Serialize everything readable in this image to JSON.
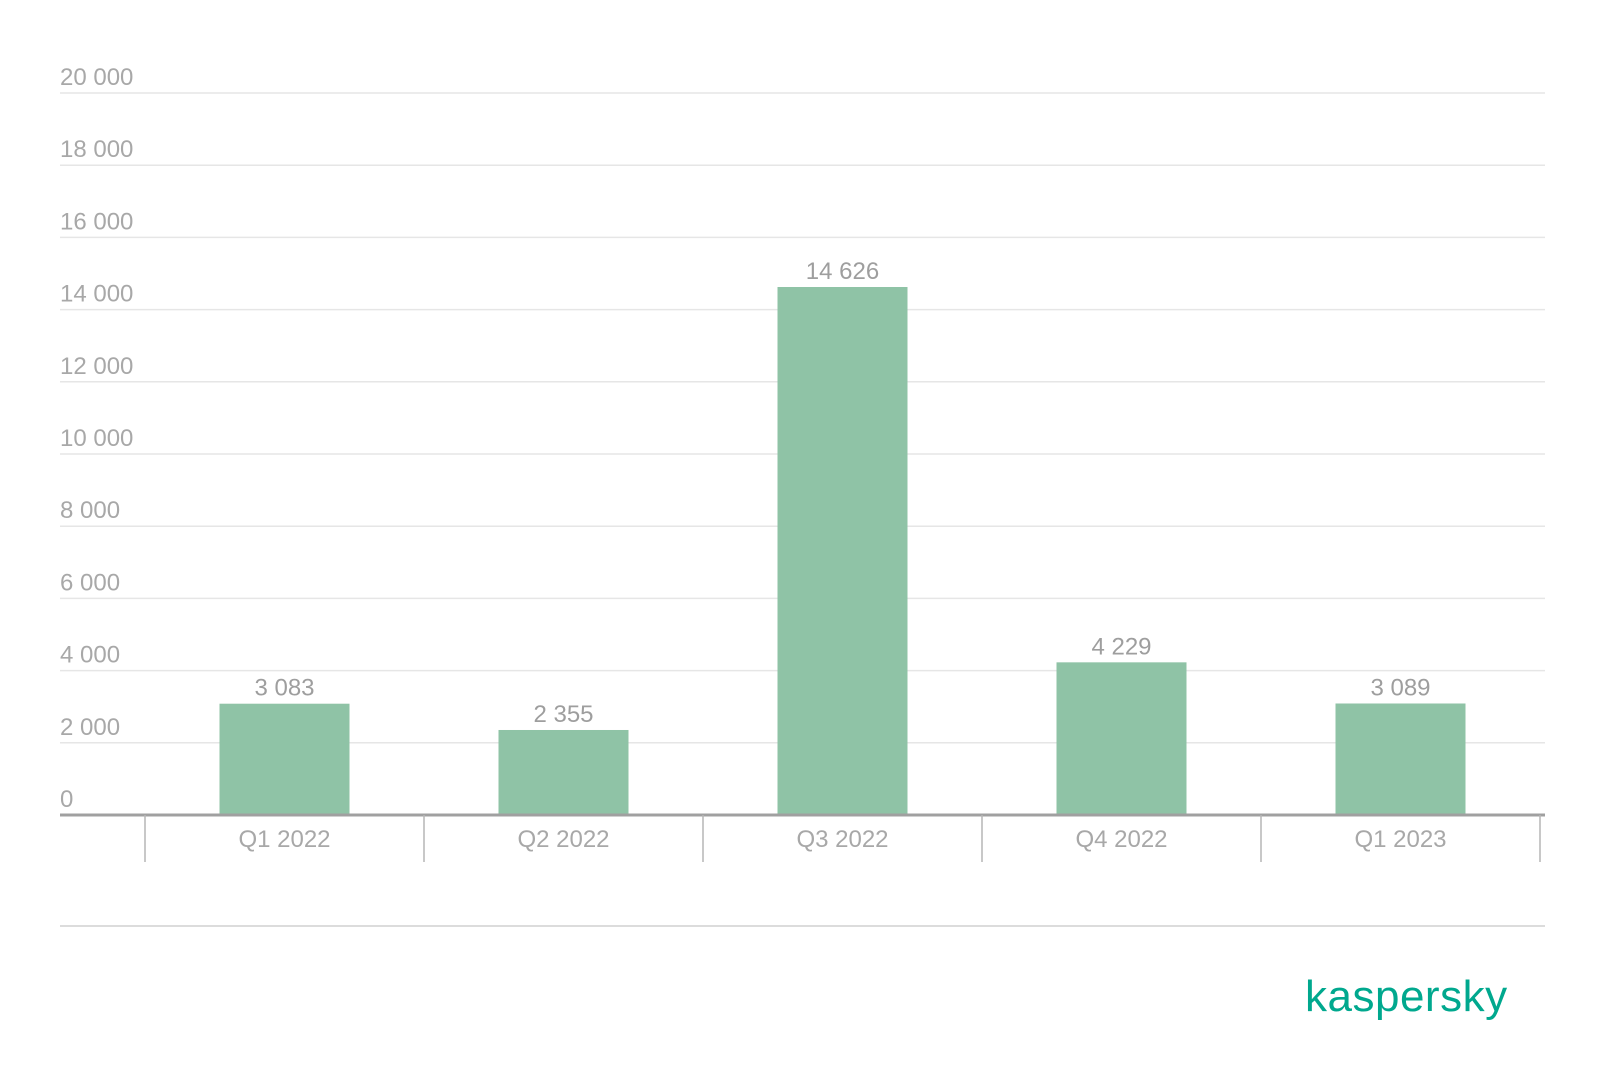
{
  "chart_data": {
    "type": "bar",
    "categories": [
      "Q1 2022",
      "Q2 2022",
      "Q3 2022",
      "Q4 2022",
      "Q1 2023"
    ],
    "values": [
      3083,
      2355,
      14626,
      4229,
      3089
    ],
    "data_labels": [
      "3 083",
      "2 355",
      "14 626",
      "4 229",
      "3 089"
    ],
    "y_ticks": [
      0,
      2000,
      4000,
      6000,
      8000,
      10000,
      12000,
      14000,
      16000,
      18000,
      20000
    ],
    "y_tick_labels": [
      "0",
      "2 000",
      "4 000",
      "6 000",
      "8 000",
      "10 000",
      "12 000",
      "14 000",
      "16 000",
      "18 000",
      "20 000"
    ],
    "ylim": [
      0,
      20000
    ],
    "title": "",
    "xlabel": "",
    "ylabel": "",
    "grid": true,
    "legend": "none"
  },
  "colors": {
    "bar": "#8fc3a6",
    "grid": "#e6e6e6",
    "axis": "#a0a0a0",
    "tick_text": "#a8a8a8",
    "brand": "#00a88e"
  },
  "brand": {
    "logo_text": "kaspersky"
  }
}
